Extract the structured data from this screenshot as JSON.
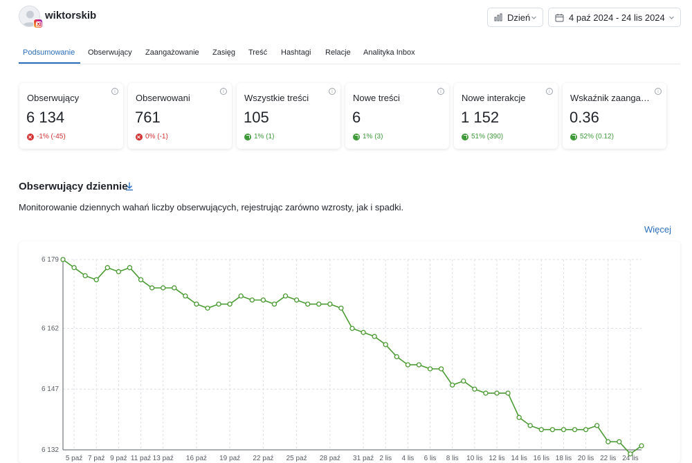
{
  "header": {
    "username": "wiktorskib",
    "period_label": "Dzień",
    "date_range": "4 paź 2024 - 24 lis 2024"
  },
  "tabs": [
    {
      "label": "Podsumowanie",
      "active": true
    },
    {
      "label": "Obserwujący"
    },
    {
      "label": "Zaangażowanie"
    },
    {
      "label": "Zasięg"
    },
    {
      "label": "Treść"
    },
    {
      "label": "Hashtagi"
    },
    {
      "label": "Relacje"
    },
    {
      "label": "Analityka Inbox"
    }
  ],
  "cards": [
    {
      "title": "Obserwujący",
      "value": "6 134",
      "delta": "-1% (-45)",
      "trend": "down"
    },
    {
      "title": "Obserwowani",
      "value": "761",
      "delta": "0% (-1)",
      "trend": "down"
    },
    {
      "title": "Wszystkie treści",
      "value": "105",
      "delta": "1% (1)",
      "trend": "up"
    },
    {
      "title": "Nowe treści",
      "value": "6",
      "delta": "1% (3)",
      "trend": "up"
    },
    {
      "title": "Nowe interakcje",
      "value": "1 152",
      "delta": "51% (390)",
      "trend": "up"
    },
    {
      "title": "Wskaźnik zaangażowania",
      "value": "0.36",
      "delta": "52% (0.12)",
      "trend": "up"
    }
  ],
  "section": {
    "title": "Obserwujący dziennie",
    "description": "Monitorowanie dziennych wahań liczby obserwujących, rejestrując zarówno wzrosty, jak i spadki.",
    "more_link": "Więcej"
  },
  "colors": {
    "accent": "#2a6ebb",
    "line": "#4a9a32",
    "negative": "#d33030",
    "positive": "#3f9a3a"
  },
  "icons": [
    "calendar-icon",
    "bar-chart-icon",
    "chevron-down-icon",
    "download-icon",
    "info-icon",
    "instagram-icon"
  ],
  "chart_data": {
    "type": "line",
    "y_ticks": [
      "6 179",
      "6 162",
      "6 147",
      "6 132"
    ],
    "ylim": [
      6132,
      6179
    ],
    "x_tick_labels": [
      "5 paź",
      "7 paź",
      "9 paź",
      "11 paź",
      "13 paź",
      "16 paź",
      "19 paź",
      "22 paź",
      "25 paź",
      "28 paź",
      "31 paź",
      "2 lis",
      "4 lis",
      "6 lis",
      "8 lis",
      "10 lis",
      "12 lis",
      "14 lis",
      "16 lis",
      "18 lis",
      "20 lis",
      "22 lis",
      "24 lis"
    ],
    "x_tick_positions": [
      1,
      3,
      5,
      7,
      9,
      12,
      15,
      18,
      21,
      24,
      27,
      29,
      31,
      33,
      35,
      37,
      39,
      41,
      43,
      45,
      47,
      49,
      51
    ],
    "grid": true,
    "series": [
      {
        "values": [
          6179,
          6177,
          6175,
          6174,
          6177,
          6176,
          6177,
          6174,
          6172,
          6172,
          6172,
          6170,
          6168,
          6167,
          6168,
          6168,
          6170,
          6169,
          6169,
          6168,
          6170,
          6169,
          6168,
          6168,
          6168,
          6167,
          6162,
          6161,
          6160,
          6158,
          6155,
          6153,
          6153,
          6152,
          6152,
          6148,
          6149,
          6147,
          6146,
          6146,
          6146,
          6140,
          6138,
          6137,
          6137,
          6137,
          6137,
          6137,
          6138,
          6134,
          6134,
          6131,
          6133
        ]
      }
    ]
  }
}
